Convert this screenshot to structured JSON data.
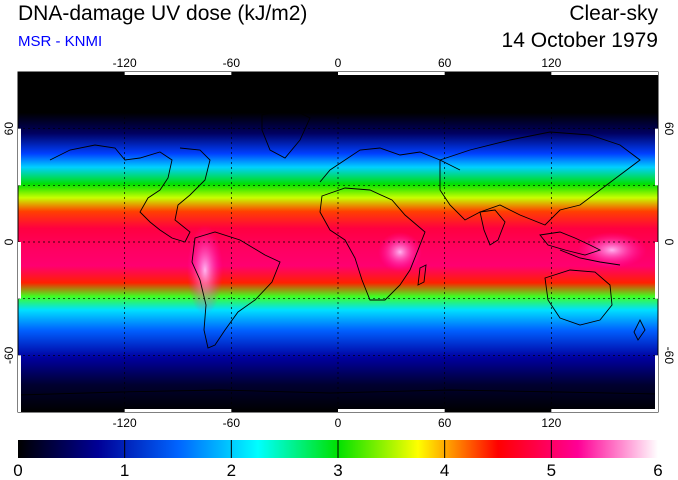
{
  "header": {
    "title": "DNA-damage UV dose (kJ/m2)",
    "subtitle": "MSR - KNMI",
    "subtitle_color": "#0000ff",
    "condition": "Clear-sky",
    "date": "14 October 1979"
  },
  "map": {
    "projection": "equirectangular",
    "lon_range": [
      -180,
      180
    ],
    "lat_range": [
      -90,
      90
    ],
    "grid": true,
    "grid_lons": [
      -120,
      -60,
      0,
      60,
      120
    ],
    "grid_lats": [
      -60,
      -30,
      0,
      30,
      60
    ],
    "lon_ticks": [
      "-120",
      "-60",
      "0",
      "60",
      "120"
    ],
    "lat_ticks": [
      "-60",
      "0",
      "60"
    ],
    "coastlines": true
  },
  "colorbar": {
    "min": 0,
    "max": 6,
    "ticks": [
      "0",
      "1",
      "2",
      "3",
      "4",
      "5",
      "6"
    ],
    "colors": [
      "#000000",
      "#000096",
      "#0064ff",
      "#00ffff",
      "#00e100",
      "#ffff00",
      "#ff0000",
      "#ff0096",
      "#ffffff"
    ]
  }
}
